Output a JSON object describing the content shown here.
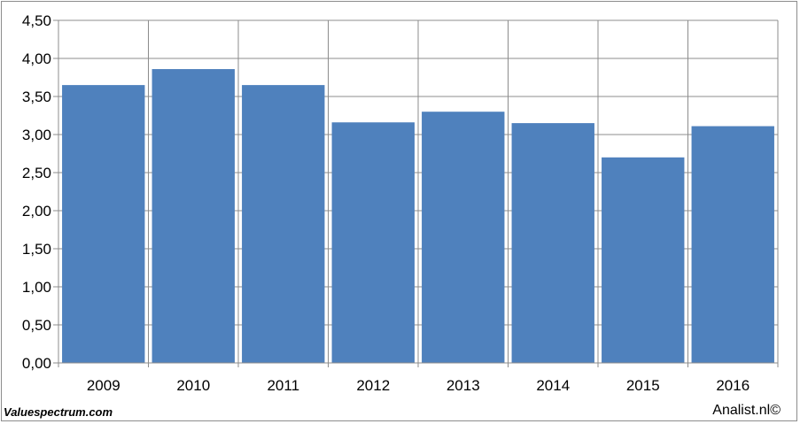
{
  "chart_data": {
    "type": "bar",
    "categories": [
      "2009",
      "2010",
      "2011",
      "2012",
      "2013",
      "2014",
      "2015",
      "2016"
    ],
    "values": [
      3.65,
      3.86,
      3.65,
      3.16,
      3.3,
      3.15,
      2.7,
      3.11
    ],
    "ylim": [
      0,
      4.5
    ],
    "yticks": [
      "0,00",
      "0,50",
      "1,00",
      "1,50",
      "2,00",
      "2,50",
      "3,00",
      "3,50",
      "4,00",
      "4,50"
    ],
    "title": "",
    "xlabel": "",
    "ylabel": "",
    "grid": true,
    "legend": "none",
    "bar_color": "#4f81bd"
  },
  "footer": {
    "source_left": "Valuespectrum.com",
    "source_right": "Analist.nl©"
  }
}
